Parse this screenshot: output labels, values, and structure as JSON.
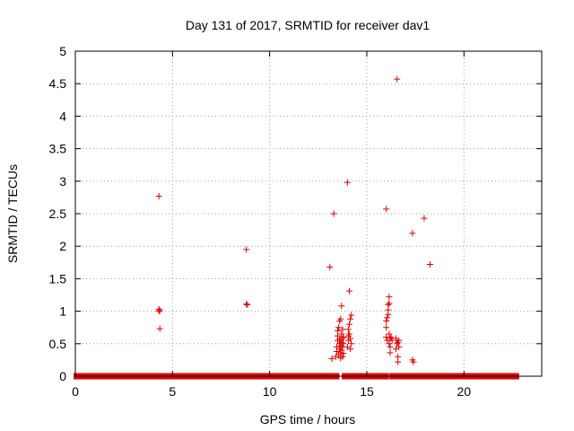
{
  "chart_data": {
    "type": "scatter",
    "title": "Day 131 of 2017, SRMTID for receiver dav1",
    "xlabel": "GPS time / hours",
    "ylabel": "SRMTID / TECUs",
    "xlim": [
      0,
      24
    ],
    "ylim": [
      0,
      5
    ],
    "xticks": [
      0,
      5,
      10,
      15,
      20
    ],
    "xtick_labels": [
      "0",
      "5",
      "10",
      "15",
      "20"
    ],
    "yticks": [
      0,
      0.5,
      1,
      1.5,
      2,
      2.5,
      3,
      3.5,
      4,
      4.5,
      5
    ],
    "ytick_labels": [
      "0",
      "0.5",
      "1",
      "1.5",
      "2",
      "2.5",
      "3",
      "3.5",
      "4",
      "4.5",
      "5"
    ],
    "grid": true,
    "marker": "+",
    "marker_color": "#e00000",
    "baseline": {
      "y": 0,
      "segments": [
        [
          0.05,
          13.45
        ],
        [
          13.85,
          14.05
        ],
        [
          14.2,
          16.0
        ],
        [
          16.3,
          16.55
        ],
        [
          16.7,
          17.1
        ],
        [
          17.35,
          22.7
        ]
      ]
    },
    "points": [
      [
        4.3,
        2.77
      ],
      [
        4.3,
        1.03
      ],
      [
        4.35,
        1.01
      ],
      [
        4.3,
        1.0
      ],
      [
        4.35,
        0.73
      ],
      [
        8.8,
        1.95
      ],
      [
        8.8,
        1.11
      ],
      [
        8.85,
        1.1
      ],
      [
        13.1,
        1.68
      ],
      [
        13.3,
        2.5
      ],
      [
        14.0,
        2.98
      ],
      [
        13.2,
        0.27
      ],
      [
        13.4,
        0.3
      ],
      [
        13.45,
        0.38
      ],
      [
        13.45,
        0.45
      ],
      [
        13.5,
        0.55
      ],
      [
        13.5,
        0.62
      ],
      [
        13.5,
        0.7
      ],
      [
        13.55,
        0.75
      ],
      [
        13.55,
        0.33
      ],
      [
        13.6,
        0.42
      ],
      [
        13.6,
        0.5
      ],
      [
        13.6,
        0.58
      ],
      [
        13.6,
        0.85
      ],
      [
        13.65,
        0.28
      ],
      [
        13.65,
        0.36
      ],
      [
        13.65,
        0.47
      ],
      [
        13.65,
        0.55
      ],
      [
        13.65,
        0.88
      ],
      [
        13.7,
        1.08
      ],
      [
        13.7,
        0.4
      ],
      [
        13.7,
        0.52
      ],
      [
        13.7,
        0.65
      ],
      [
        13.75,
        0.3
      ],
      [
        13.75,
        0.45
      ],
      [
        13.75,
        0.58
      ],
      [
        13.75,
        0.72
      ],
      [
        13.8,
        0.35
      ],
      [
        13.8,
        0.5
      ],
      [
        13.8,
        0.6
      ],
      [
        14.0,
        0.45
      ],
      [
        14.05,
        0.55
      ],
      [
        14.05,
        0.62
      ],
      [
        14.05,
        0.72
      ],
      [
        14.1,
        0.8
      ],
      [
        14.1,
        0.65
      ],
      [
        14.1,
        1.31
      ],
      [
        14.15,
        0.42
      ],
      [
        14.15,
        0.58
      ],
      [
        14.15,
        0.88
      ],
      [
        14.2,
        0.5
      ],
      [
        14.2,
        0.94
      ],
      [
        16.0,
        2.57
      ],
      [
        16.55,
        4.57
      ],
      [
        16.0,
        0.6
      ],
      [
        16.0,
        0.75
      ],
      [
        16.0,
        0.85
      ],
      [
        16.05,
        0.9
      ],
      [
        16.05,
        0.55
      ],
      [
        16.1,
        0.95
      ],
      [
        16.1,
        1.02
      ],
      [
        16.1,
        1.1
      ],
      [
        16.15,
        1.22
      ],
      [
        16.15,
        1.12
      ],
      [
        16.15,
        0.65
      ],
      [
        16.15,
        0.5
      ],
      [
        16.2,
        0.45
      ],
      [
        16.2,
        0.58
      ],
      [
        16.2,
        0.36
      ],
      [
        16.25,
        0.6
      ],
      [
        16.3,
        0.55
      ],
      [
        16.5,
        0.58
      ],
      [
        16.5,
        0.42
      ],
      [
        16.55,
        0.5
      ],
      [
        16.6,
        0.3
      ],
      [
        16.6,
        0.52
      ],
      [
        16.6,
        0.22
      ],
      [
        16.65,
        0.55
      ],
      [
        16.65,
        0.45
      ],
      [
        17.35,
        2.2
      ],
      [
        17.35,
        0.25
      ],
      [
        17.4,
        0.22
      ],
      [
        17.95,
        2.43
      ],
      [
        18.25,
        1.72
      ]
    ]
  }
}
